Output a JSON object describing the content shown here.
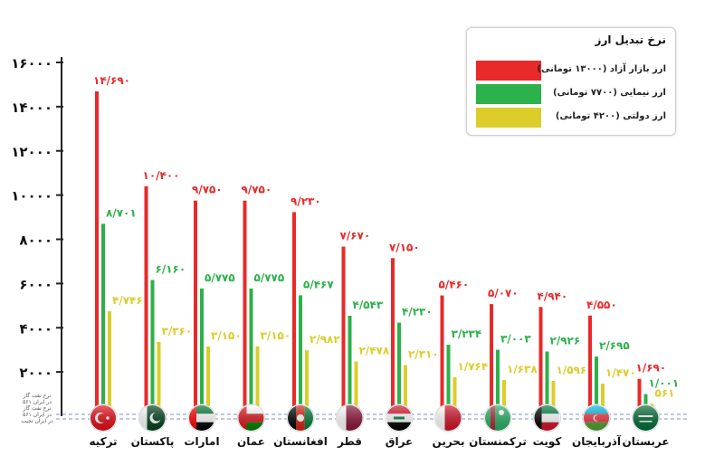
{
  "legend": {
    "title": "نرخ تبدیل ارز",
    "items": [
      {
        "label": "ارز بازار آزاد (۱۳۰۰۰ تومانی)",
        "color": "#e82a2a"
      },
      {
        "label": "ارز نیمایی (۷۷۰۰ تومانی)",
        "color": "#2db14a"
      },
      {
        "label": "ارز دولتی (۴۲۰۰ تومانی)",
        "color": "#dccd2a"
      }
    ]
  },
  "source_note": [
    "نرخ نفت گاز",
    "در ایران ۵۶۱",
    "نرخ نفت گاز",
    "در ایران ۵۶۱",
    "در ایران تجیب"
  ],
  "chart_data": {
    "type": "bar",
    "categories": [
      "ترکیه",
      "پاکستان",
      "امارات",
      "عمان",
      "افغانستان",
      "قطر",
      "عراق",
      "بحرین",
      "ترکمنستان",
      "کویت",
      "آذربایجان",
      "عربستان"
    ],
    "series": [
      {
        "name": "ارز بازار آزاد (۱۳۰۰۰ تومانی)",
        "color": "#e82a2a",
        "values": [
          14690,
          10400,
          9750,
          9750,
          9230,
          7670,
          7150,
          5460,
          5070,
          4940,
          4550,
          1690
        ],
        "labels": [
          "۱۴/۶۹۰",
          "۱۰/۴۰۰",
          "۹/۷۵۰",
          "۹/۷۵۰",
          "۹/۲۳۰",
          "۷/۶۷۰",
          "۷/۱۵۰",
          "۵/۴۶۰",
          "۵/۰۷۰",
          "۴/۹۴۰",
          "۴/۵۵۰",
          "۱/۶۹۰"
        ]
      },
      {
        "name": "ارز نیمایی (۷۷۰۰ تومانی)",
        "color": "#2db14a",
        "values": [
          8701,
          6160,
          5775,
          5775,
          5467,
          4543,
          4230,
          3234,
          3003,
          2926,
          2695,
          1001
        ],
        "labels": [
          "۸/۷۰۱",
          "۶/۱۶۰",
          "۵/۷۷۵",
          "۵/۷۷۵",
          "۵/۴۶۷",
          "۴/۵۴۳",
          "۴/۲۳۰",
          "۳/۲۳۴",
          "۳/۰۰۳",
          "۲/۹۲۶",
          "۲/۶۹۵",
          "۱/۰۰۱"
        ]
      },
      {
        "name": "ارز دولتی (۴۲۰۰ تومانی)",
        "color": "#dccd2a",
        "values": [
          4746,
          3360,
          3150,
          3150,
          2982,
          2478,
          2310,
          1764,
          1638,
          1596,
          1470,
          561
        ],
        "labels": [
          "۴/۷۴۶",
          "۳/۳۶۰",
          "۳/۱۵۰",
          "۳/۱۵۰",
          "۲/۹۸۲",
          "۲/۴۷۸",
          "۲/۳۱۰",
          "۱/۷۶۴",
          "۱/۶۳۸",
          "۱/۵۹۶",
          "۱/۴۷۰",
          "۵۶۱"
        ]
      }
    ],
    "yticks": [
      2000,
      4000,
      6000,
      8000,
      10000,
      12000,
      14000,
      16000
    ],
    "ytick_labels": [
      "۲۰۰۰",
      "۴۰۰۰",
      "۶۰۰۰",
      "۸۰۰۰",
      "۱۰۰۰۰",
      "۱۲۰۰۰",
      "۱۴۰۰۰",
      "۱۶۰۰۰"
    ],
    "ylim": [
      0,
      16000
    ],
    "grid": false,
    "legend_position": "top-right"
  }
}
